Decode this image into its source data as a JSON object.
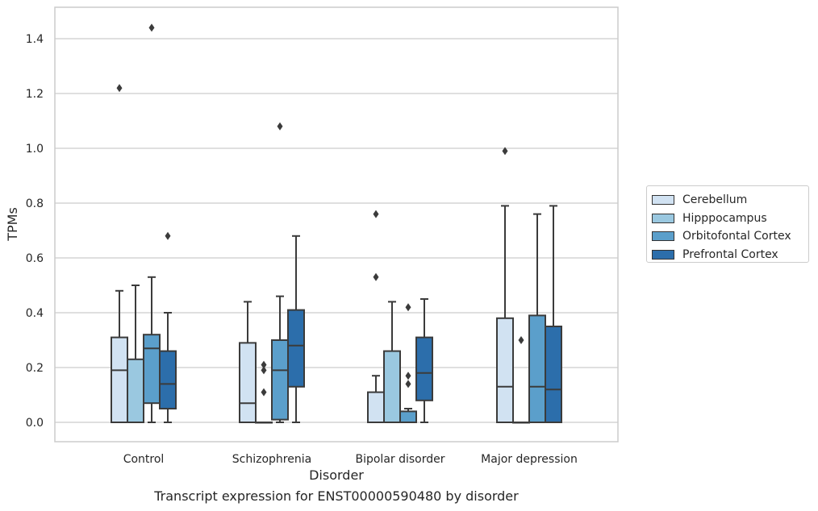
{
  "chart_data": {
    "type": "box",
    "xlabel": "Disorder",
    "ylabel": "TPMs",
    "ylim": [
      -0.07,
      1.52
    ],
    "yticks": [
      0.0,
      0.2,
      0.4,
      0.6,
      0.8,
      1.0,
      1.2,
      1.4
    ],
    "ytick_labels": [
      "0.0",
      "0.2",
      "0.4",
      "0.6",
      "0.8",
      "1.0",
      "1.2",
      "1.4"
    ],
    "grid": "y",
    "legend_position": "right, outside plot",
    "categories": [
      "Control",
      "Schizophrenia",
      "Bipolar disorder",
      "Major depression"
    ],
    "series": [
      {
        "name": "Cerebellum",
        "color": "#d1e2f2",
        "boxes": [
          {
            "whislo": 0.0,
            "q1": 0.0,
            "med": 0.19,
            "q3": 0.31,
            "whishi": 0.48,
            "fliers": [
              1.22
            ]
          },
          {
            "whislo": 0.0,
            "q1": 0.0,
            "med": 0.07,
            "q3": 0.29,
            "whishi": 0.44,
            "fliers": []
          },
          {
            "whislo": 0.0,
            "q1": 0.0,
            "med": 0.0,
            "q3": 0.11,
            "whishi": 0.17,
            "fliers": [
              0.53,
              0.76
            ]
          },
          {
            "whislo": 0.0,
            "q1": 0.0,
            "med": 0.13,
            "q3": 0.38,
            "whishi": 0.79,
            "fliers": [
              0.99
            ]
          }
        ]
      },
      {
        "name": "Hipppocampus",
        "color": "#9ac8e0",
        "boxes": [
          {
            "whislo": 0.0,
            "q1": 0.0,
            "med": 0.0,
            "q3": 0.23,
            "whishi": 0.5,
            "fliers": []
          },
          {
            "whislo": 0.0,
            "q1": 0.0,
            "med": 0.0,
            "q3": 0.0,
            "whishi": 0.0,
            "fliers": [
              0.11,
              0.19,
              0.21
            ]
          },
          {
            "whislo": 0.0,
            "q1": 0.0,
            "med": 0.0,
            "q3": 0.26,
            "whishi": 0.44,
            "fliers": []
          },
          {
            "whislo": 0.0,
            "q1": 0.0,
            "med": 0.0,
            "q3": 0.0,
            "whishi": 0.0,
            "fliers": [
              0.3
            ]
          }
        ]
      },
      {
        "name": "Orbitofontal Cortex",
        "color": "#5b9fcb",
        "boxes": [
          {
            "whislo": 0.0,
            "q1": 0.07,
            "med": 0.27,
            "q3": 0.32,
            "whishi": 0.53,
            "fliers": [
              1.44
            ]
          },
          {
            "whislo": 0.0,
            "q1": 0.01,
            "med": 0.19,
            "q3": 0.3,
            "whishi": 0.46,
            "fliers": [
              1.08
            ]
          },
          {
            "whislo": 0.0,
            "q1": 0.0,
            "med": 0.0,
            "q3": 0.04,
            "whishi": 0.05,
            "fliers": [
              0.14,
              0.17,
              0.42
            ]
          },
          {
            "whislo": 0.0,
            "q1": 0.0,
            "med": 0.13,
            "q3": 0.39,
            "whishi": 0.76,
            "fliers": []
          }
        ]
      },
      {
        "name": "Prefrontal Cortex",
        "color": "#2c6eab",
        "boxes": [
          {
            "whislo": 0.0,
            "q1": 0.05,
            "med": 0.14,
            "q3": 0.26,
            "whishi": 0.4,
            "fliers": [
              0.68
            ]
          },
          {
            "whislo": 0.0,
            "q1": 0.13,
            "med": 0.28,
            "q3": 0.41,
            "whishi": 0.68,
            "fliers": []
          },
          {
            "whislo": 0.0,
            "q1": 0.08,
            "med": 0.18,
            "q3": 0.31,
            "whishi": 0.45,
            "fliers": []
          },
          {
            "whislo": 0.0,
            "q1": 0.0,
            "med": 0.12,
            "q3": 0.35,
            "whishi": 0.79,
            "fliers": []
          }
        ]
      }
    ]
  },
  "caption": "Transcript expression for ENST00000590480 by disorder"
}
